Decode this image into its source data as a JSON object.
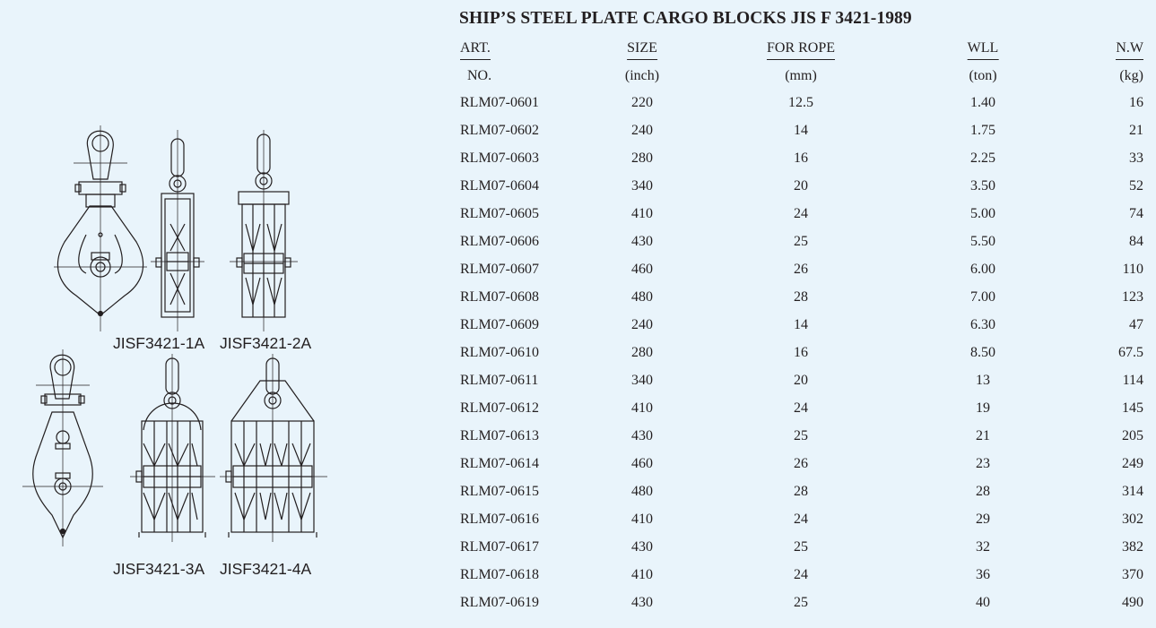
{
  "title": "SHIP’S STEEL PLATE CARGO BLOCKS JIS F 3421-1989",
  "header_top": [
    "ART.",
    "SIZE",
    "FOR ROPE",
    "WLL",
    "N.W"
  ],
  "header_bottom": [
    "NO.",
    "(inch)",
    "(mm)",
    "(ton)",
    "(kg)"
  ],
  "rows": [
    [
      "RLM07-0601",
      "220",
      "12.5",
      "1.40",
      "16"
    ],
    [
      "RLM07-0602",
      "240",
      "14",
      "1.75",
      "21"
    ],
    [
      "RLM07-0603",
      "280",
      "16",
      "2.25",
      "33"
    ],
    [
      "RLM07-0604",
      "340",
      "20",
      "3.50",
      "52"
    ],
    [
      "RLM07-0605",
      "410",
      "24",
      "5.00",
      "74"
    ],
    [
      "RLM07-0606",
      "430",
      "25",
      "5.50",
      "84"
    ],
    [
      "RLM07-0607",
      "460",
      "26",
      "6.00",
      "110"
    ],
    [
      "RLM07-0608",
      "480",
      "28",
      "7.00",
      "123"
    ],
    [
      "RLM07-0609",
      "240",
      "14",
      "6.30",
      "47"
    ],
    [
      "RLM07-0610",
      "280",
      "16",
      "8.50",
      "67.5"
    ],
    [
      "RLM07-0611",
      "340",
      "20",
      "13",
      "114"
    ],
    [
      "RLM07-0612",
      "410",
      "24",
      "19",
      "145"
    ],
    [
      "RLM07-0613",
      "430",
      "25",
      "21",
      "205"
    ],
    [
      "RLM07-0614",
      "460",
      "26",
      "23",
      "249"
    ],
    [
      "RLM07-0615",
      "480",
      "28",
      "28",
      "314"
    ],
    [
      "RLM07-0616",
      "410",
      "24",
      "29",
      "302"
    ],
    [
      "RLM07-0617",
      "430",
      "25",
      "32",
      "382"
    ],
    [
      "RLM07-0618",
      "410",
      "24",
      "36",
      "370"
    ],
    [
      "RLM07-0619",
      "430",
      "25",
      "40",
      "490"
    ]
  ],
  "captions": {
    "c1": "JISF3421-1A",
    "c2": "JISF3421-2A",
    "c3": "JISF3421-3A",
    "c4": "JISF3421-4A"
  },
  "colors": {
    "background": "#e9f4fb",
    "ink": "#231f20"
  }
}
